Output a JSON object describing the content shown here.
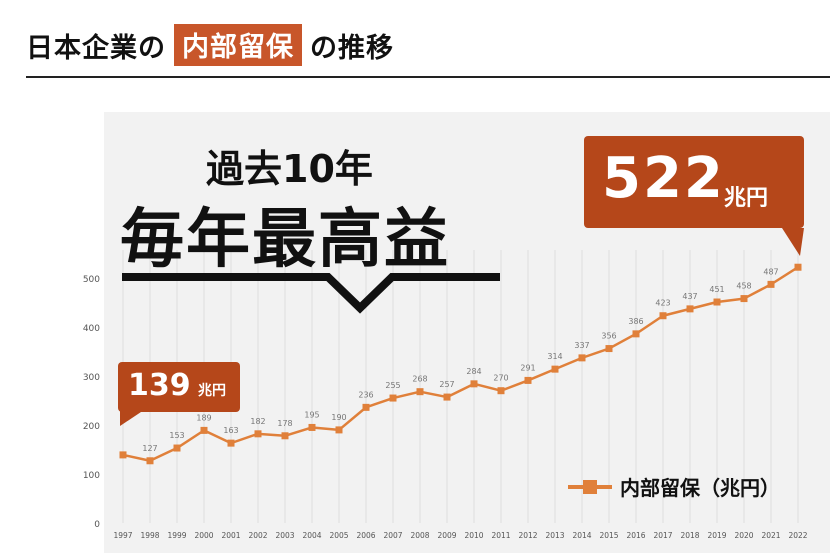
{
  "header": {
    "title_pre": "日本企業の",
    "title_highlight": "内部留保",
    "title_post": "の推移"
  },
  "headline": {
    "sub": "過去10年",
    "main": "毎年最高益"
  },
  "callouts": {
    "latest_value": "522",
    "latest_unit": "兆円",
    "first_value": "139",
    "first_unit": "兆円"
  },
  "legend": {
    "label": "内部留保（兆円）"
  },
  "colors": {
    "accent": "#c8562a",
    "callout": "#b5471a",
    "series": "#e0803a"
  },
  "chart_data": {
    "type": "line",
    "x": [
      "1997",
      "1998",
      "1999",
      "2000",
      "2001",
      "2002",
      "2003",
      "2004",
      "2005",
      "2006",
      "2007",
      "2008",
      "2009",
      "2010",
      "2011",
      "2012",
      "2013",
      "2014",
      "2015",
      "2016",
      "2017",
      "2018",
      "2019",
      "2020",
      "2021",
      "2022"
    ],
    "series": [
      {
        "name": "内部留保（兆円）",
        "values": [
          139,
          127,
          153,
          189,
          163,
          182,
          178,
          195,
          190,
          236,
          255,
          268,
          257,
          284,
          270,
          291,
          314,
          337,
          356,
          386,
          423,
          437,
          451,
          458,
          487,
          522
        ],
        "data_labels": [
          null,
          "127",
          "153",
          "189",
          "163",
          "182",
          "178",
          "195",
          "190",
          "236",
          "255",
          "268",
          "257",
          "284",
          "270",
          "291",
          "314",
          "337",
          "356",
          "386",
          "423",
          "437",
          "451",
          "458",
          "487",
          null
        ]
      }
    ],
    "yticks": [
      "0",
      "100",
      "200",
      "300",
      "400",
      "500"
    ],
    "ylim": [
      0,
      530
    ],
    "grid": "vertical"
  }
}
